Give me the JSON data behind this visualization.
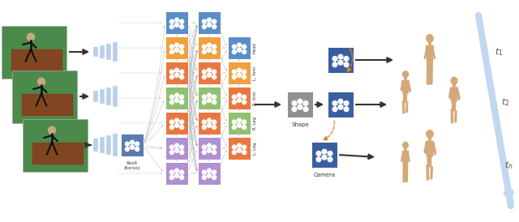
{
  "bg_color": "#ffffff",
  "fig_width": 6.4,
  "fig_height": 2.74,
  "dpi": 100,
  "photo_green": "#4a8a4a",
  "photo_dark_green": "#2a5a2a",
  "photo_edge": "#cccccc",
  "feat_bar_color": "#b8d0e8",
  "bp_colors_col1": [
    "#5a8ec8",
    "#f0a040",
    "#e87840",
    "#90c070",
    "#e87840",
    "#b090d0",
    "#b090d0"
  ],
  "bp_colors_col2": [
    "#5a8ec8",
    "#f0a040",
    "#e87840",
    "#90c070",
    "#e87840",
    "#b090d0",
    "#b090d0"
  ],
  "bp_labels": [
    "Head",
    "L. Arm",
    "R. Arm",
    "R. Leg",
    "L. Leg",
    "",
    ""
  ],
  "root_color": "#5a7ab0",
  "shape_color": "#909090",
  "recurrent_color": "#3a5fa0",
  "camera_color": "#3a5fa0",
  "timeline_color": "#c0d8f0",
  "body_color": "#d4a878",
  "arrow_dark": "#333333",
  "arrow_blue_dashed": "#7ab0d4",
  "arrow_orange_dashed": "#e8881a",
  "gray_curve": "#bbbbbb",
  "root_label": "Root\n(torso)",
  "shape_label": "Shape",
  "camera_label": "Camera",
  "t1": "$t_1$",
  "t2": "$t_2$",
  "tn": "$t_n$"
}
